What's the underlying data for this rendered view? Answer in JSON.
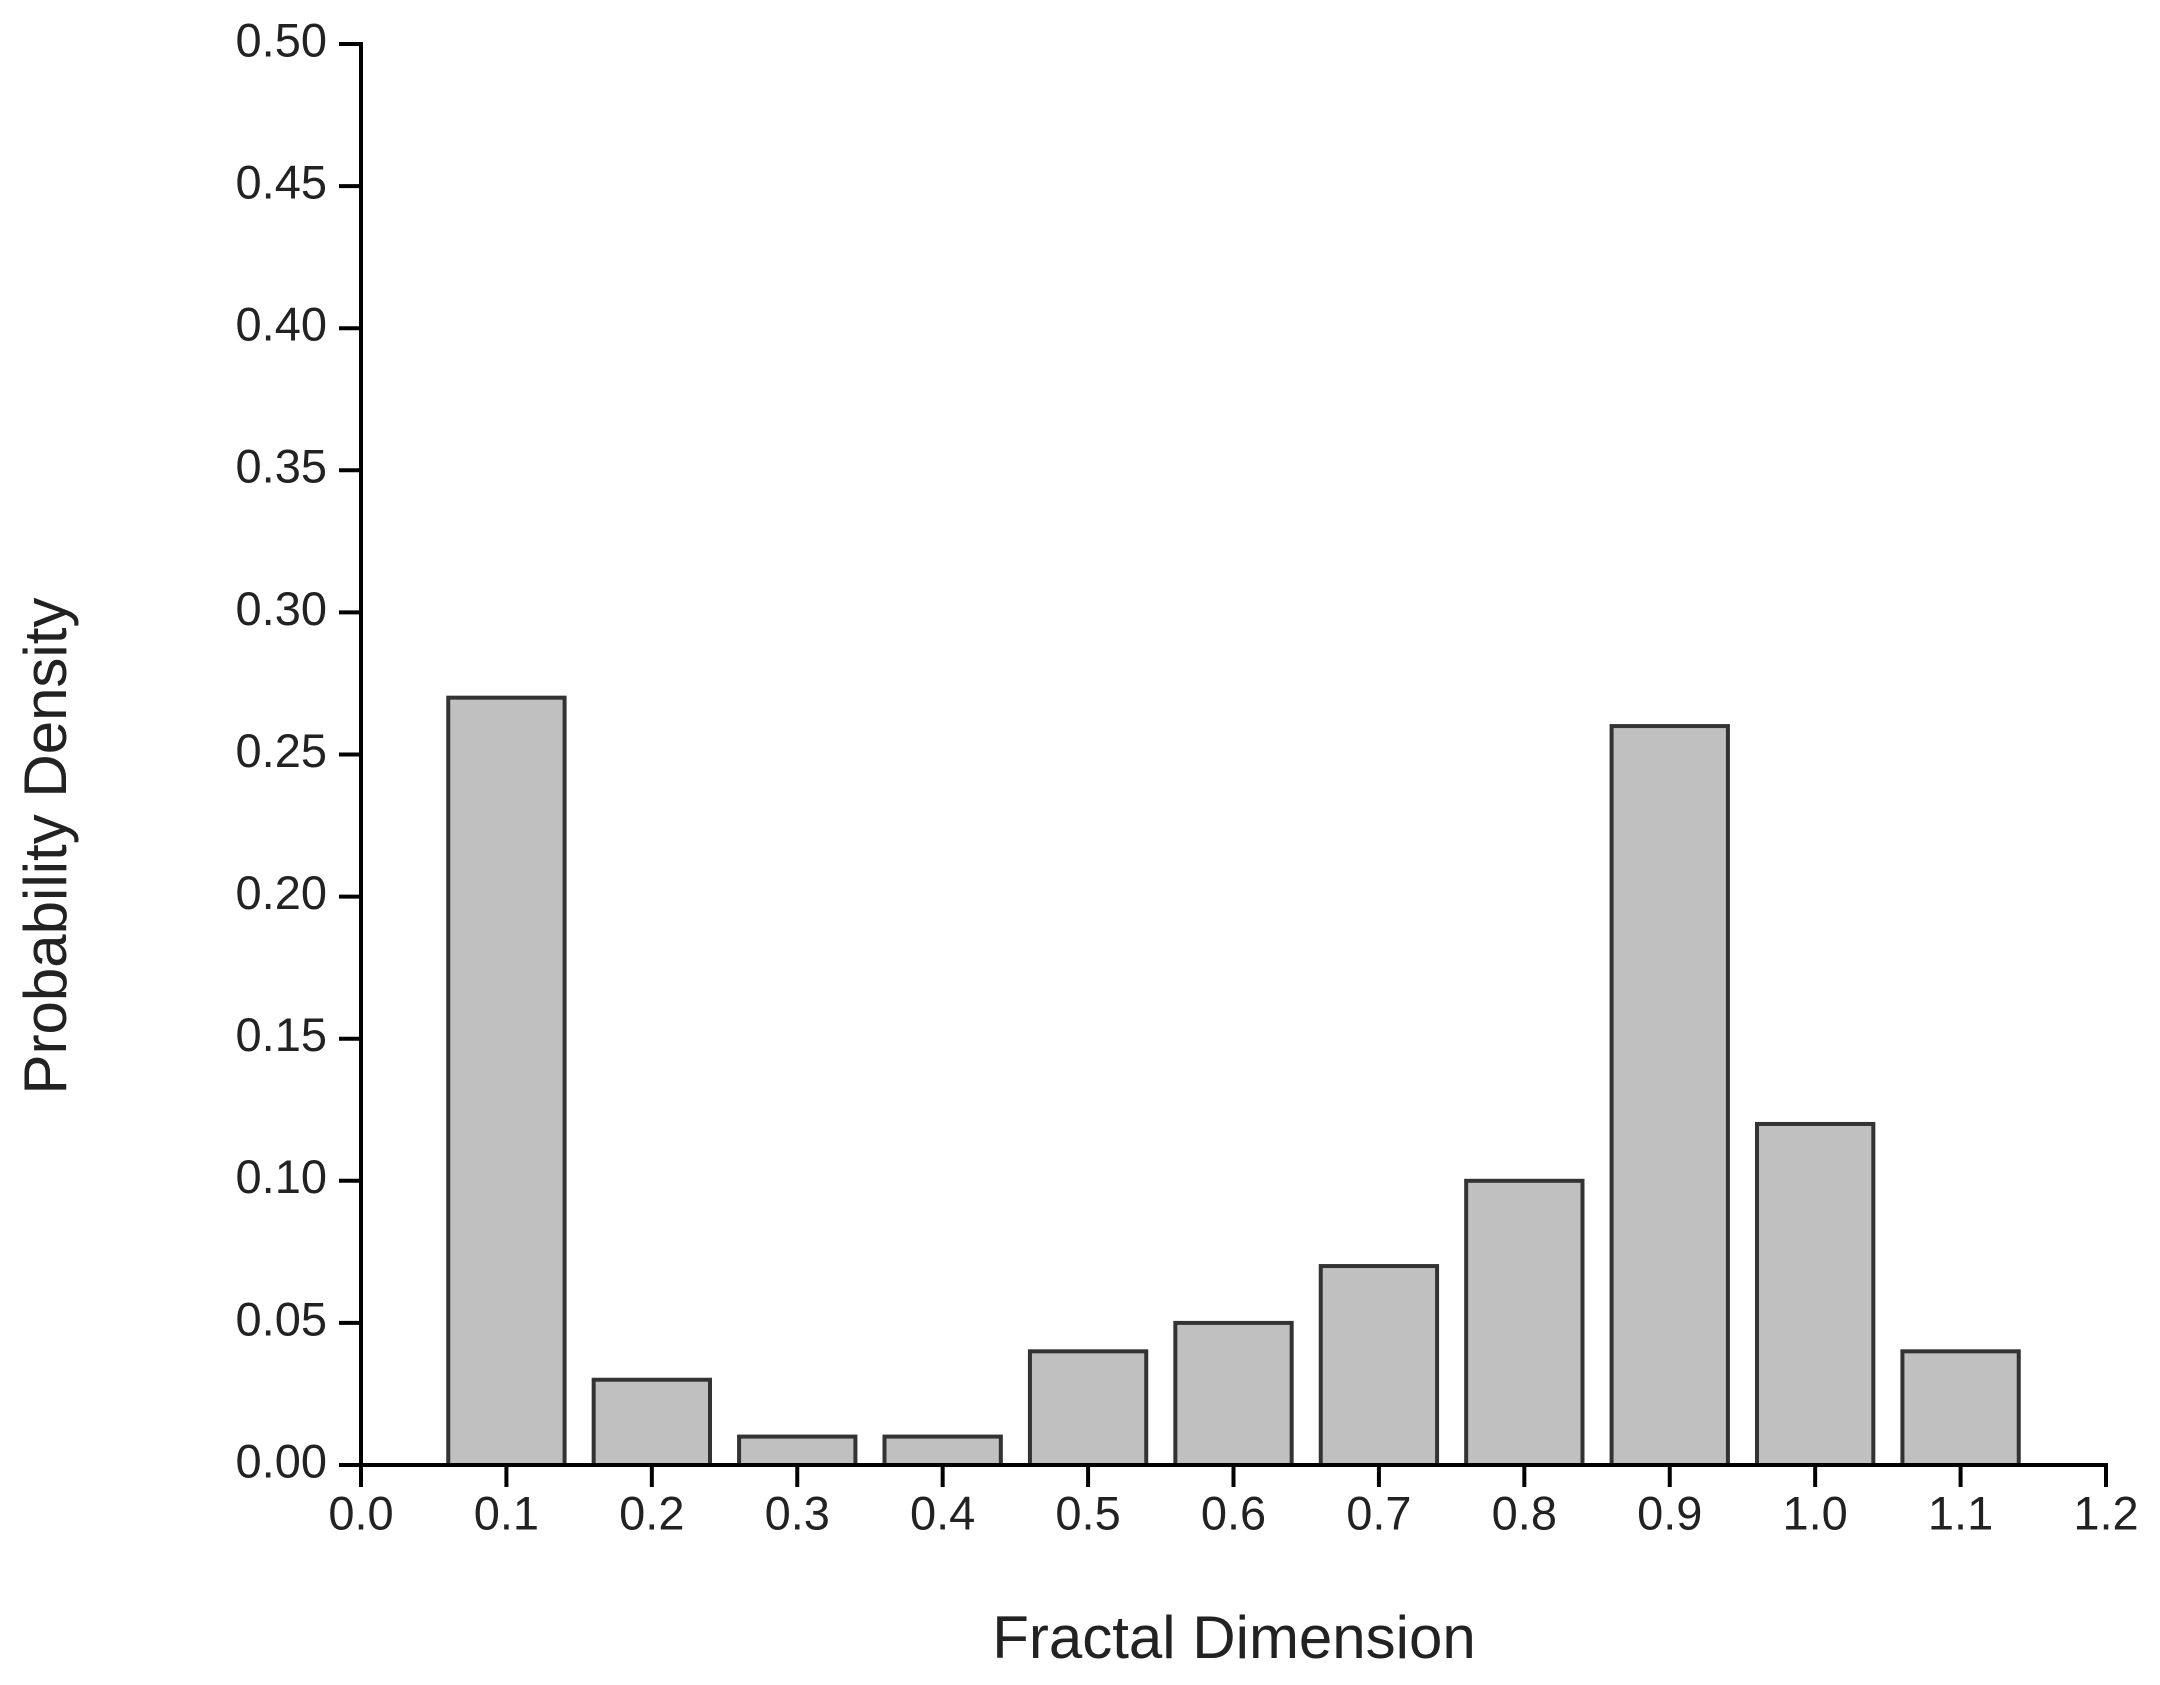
{
  "chart_data": {
    "type": "bar",
    "x_label": "Fractal Dimension",
    "y_label": "Probability Density",
    "x": [
      0.1,
      0.2,
      0.3,
      0.4,
      0.5,
      0.6,
      0.7,
      0.8,
      0.9,
      1.0,
      1.1
    ],
    "values": [
      0.27,
      0.03,
      0.01,
      0.01,
      0.04,
      0.05,
      0.07,
      0.1,
      0.26,
      0.12,
      0.04
    ],
    "color": "#c0c0c0",
    "xlim": [
      0,
      1.2
    ],
    "xticks": [
      {
        "value": 0,
        "label": "0.0"
      },
      0.1,
      0.2,
      0.3,
      0.4,
      0.5,
      0.6,
      0.7,
      0.8,
      0.9,
      {
        "value": 1,
        "label": "1.0"
      },
      1.1,
      1.2
    ],
    "ylim": [
      0,
      0.5
    ],
    "yticks": [
      {
        "value": 0,
        "label": "0.00"
      },
      0.05,
      {
        "value": 0.1,
        "label": "0.10"
      },
      0.15,
      {
        "value": 0.2,
        "label": "0.20"
      },
      0.25,
      {
        "value": 0.3,
        "label": "0.30"
      },
      0.35,
      {
        "value": 0.4,
        "label": "0.40"
      },
      0.45,
      {
        "value": 0.5,
        "label": "0.50"
      }
    ],
    "grid": false
  }
}
